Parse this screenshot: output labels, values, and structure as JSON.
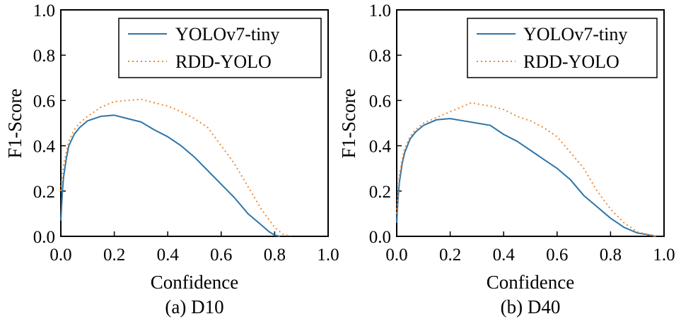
{
  "colors": {
    "series_1": "#2e75a8",
    "series_2": "#ef8a2f",
    "axis": "#000000",
    "background": "#ffffff"
  },
  "chart_data": [
    {
      "type": "line",
      "caption": "(a) D10",
      "xlabel": "Confidence",
      "ylabel": "F1-Score",
      "xlim": [
        0,
        1
      ],
      "ylim": [
        0,
        1
      ],
      "xticks": [
        "0.0",
        "0.2",
        "0.4",
        "0.6",
        "0.8",
        "1.0"
      ],
      "yticks": [
        "0.0",
        "0.2",
        "0.4",
        "0.6",
        "0.8",
        "1.0"
      ],
      "grid": false,
      "legend_position": "top-right",
      "series": [
        {
          "name": "YOLOv7-tiny",
          "style": "solid",
          "x": [
            0.0,
            0.005,
            0.01,
            0.02,
            0.03,
            0.05,
            0.07,
            0.1,
            0.15,
            0.2,
            0.25,
            0.3,
            0.35,
            0.4,
            0.45,
            0.5,
            0.55,
            0.6,
            0.65,
            0.7,
            0.75,
            0.78,
            0.8,
            0.82
          ],
          "y": [
            0.07,
            0.18,
            0.26,
            0.34,
            0.4,
            0.45,
            0.48,
            0.51,
            0.53,
            0.535,
            0.52,
            0.505,
            0.47,
            0.44,
            0.4,
            0.35,
            0.29,
            0.23,
            0.17,
            0.1,
            0.05,
            0.02,
            0.005,
            0.0
          ]
        },
        {
          "name": "RDD-YOLO",
          "style": "dotted",
          "x": [
            0.0,
            0.005,
            0.01,
            0.02,
            0.03,
            0.05,
            0.07,
            0.1,
            0.15,
            0.2,
            0.25,
            0.3,
            0.35,
            0.4,
            0.45,
            0.5,
            0.55,
            0.6,
            0.65,
            0.7,
            0.75,
            0.8,
            0.83,
            0.86
          ],
          "y": [
            0.2,
            0.26,
            0.31,
            0.37,
            0.42,
            0.47,
            0.5,
            0.53,
            0.57,
            0.595,
            0.6,
            0.605,
            0.59,
            0.575,
            0.55,
            0.52,
            0.48,
            0.4,
            0.32,
            0.22,
            0.12,
            0.04,
            0.01,
            0.0
          ]
        }
      ]
    },
    {
      "type": "line",
      "caption": "(b) D40",
      "xlabel": "Confidence",
      "ylabel": "F1-Score",
      "xlim": [
        0,
        1
      ],
      "ylim": [
        0,
        1
      ],
      "xticks": [
        "0.0",
        "0.2",
        "0.4",
        "0.6",
        "0.8",
        "1.0"
      ],
      "yticks": [
        "0.0",
        "0.2",
        "0.4",
        "0.6",
        "0.8",
        "1.0"
      ],
      "grid": false,
      "legend_position": "top-right",
      "series": [
        {
          "name": "YOLOv7-tiny",
          "style": "solid",
          "x": [
            0.0,
            0.005,
            0.01,
            0.02,
            0.03,
            0.05,
            0.07,
            0.1,
            0.15,
            0.2,
            0.25,
            0.3,
            0.35,
            0.4,
            0.45,
            0.5,
            0.55,
            0.6,
            0.65,
            0.7,
            0.75,
            0.8,
            0.85,
            0.9,
            0.95,
            0.97
          ],
          "y": [
            0.06,
            0.17,
            0.24,
            0.32,
            0.37,
            0.43,
            0.46,
            0.49,
            0.515,
            0.52,
            0.51,
            0.5,
            0.49,
            0.45,
            0.42,
            0.38,
            0.34,
            0.3,
            0.25,
            0.18,
            0.13,
            0.08,
            0.04,
            0.015,
            0.005,
            0.0
          ]
        },
        {
          "name": "RDD-YOLO",
          "style": "dotted",
          "x": [
            0.0,
            0.005,
            0.01,
            0.02,
            0.03,
            0.05,
            0.07,
            0.1,
            0.15,
            0.2,
            0.25,
            0.28,
            0.3,
            0.35,
            0.4,
            0.45,
            0.5,
            0.55,
            0.6,
            0.65,
            0.7,
            0.75,
            0.8,
            0.85,
            0.9,
            0.95,
            0.97
          ],
          "y": [
            0.1,
            0.2,
            0.27,
            0.34,
            0.39,
            0.44,
            0.47,
            0.5,
            0.525,
            0.55,
            0.575,
            0.59,
            0.585,
            0.575,
            0.56,
            0.53,
            0.51,
            0.48,
            0.44,
            0.37,
            0.3,
            0.2,
            0.12,
            0.06,
            0.02,
            0.005,
            0.0
          ]
        }
      ]
    }
  ]
}
